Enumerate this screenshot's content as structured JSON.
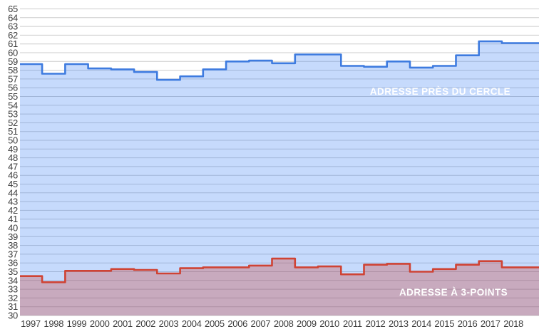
{
  "chart_data": {
    "type": "area",
    "subtype": "step",
    "title": "",
    "xlabel": "",
    "ylabel": "",
    "x": [
      1997,
      1998,
      1999,
      2000,
      2001,
      2002,
      2003,
      2004,
      2005,
      2006,
      2007,
      2008,
      2009,
      2010,
      2011,
      2012,
      2013,
      2014,
      2015,
      2016,
      2017,
      2018
    ],
    "series": [
      {
        "name": "ADRESSE PRÈS DU CERCLE",
        "values": [
          58.7,
          57.6,
          58.7,
          58.2,
          58.1,
          57.8,
          56.9,
          57.3,
          58.1,
          59.0,
          59.1,
          58.8,
          59.8,
          59.8,
          58.5,
          58.4,
          59.0,
          58.3,
          58.5,
          59.7,
          61.3,
          61.1
        ],
        "line_color": "#3e7bdf",
        "fill_color": "rgba(66,133,244,0.30)",
        "label_position": "inside-right-top"
      },
      {
        "name": "ADRESSE À 3-POINTS",
        "values": [
          34.5,
          33.8,
          35.1,
          35.1,
          35.3,
          35.2,
          34.8,
          35.4,
          35.5,
          35.5,
          35.7,
          36.5,
          35.5,
          35.6,
          34.7,
          35.8,
          35.9,
          35.0,
          35.3,
          35.8,
          36.2,
          35.5
        ],
        "line_color": "#cf4334",
        "fill_color": "rgba(204,60,45,0.30)",
        "label_position": "inside-right-bottom"
      }
    ],
    "ylim": [
      30,
      65
    ],
    "ytick_step": 1,
    "grid": true,
    "legend_position": "inside",
    "gridline_color": "#cccccc",
    "tick_label_color": "#3d3d3d",
    "background": "#ffffff"
  }
}
